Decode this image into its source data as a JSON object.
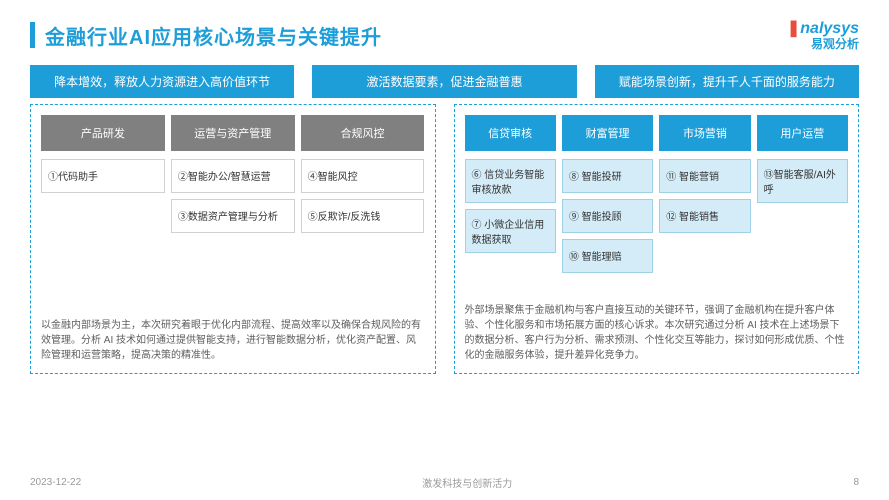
{
  "title": "金融行业AI应用核心场景与关键提升",
  "logo": {
    "en_prefix": "❚",
    "en": "nalysys",
    "cn": "易观分析"
  },
  "colors": {
    "primary": "#1e9ed8",
    "gray_header": "#808080",
    "cell_border_gray": "#d0d0d0",
    "cell_border_blue": "#9ed0e8",
    "cell_fill_blue": "#d4ecf7",
    "text": "#333333",
    "desc": "#5e5e5e",
    "footer": "#9a9a9a"
  },
  "headers": [
    "降本增效，释放人力资源进入高价值环节",
    "激活数据要素，促进金融普惠",
    "赋能场景创新，提升千人千面的服务能力"
  ],
  "left": {
    "subheaders": [
      "产品研发",
      "运营与资产管理",
      "合规风控"
    ],
    "cols": [
      [
        "①代码助手"
      ],
      [
        "②智能办公/智慧运营",
        "③数据资产管理与分析"
      ],
      [
        "④智能风控",
        "⑤反欺诈/反洗钱"
      ]
    ],
    "desc": "以金融内部场景为主，本次研究着眼于优化内部流程、提高效率以及确保合规风险的有效管理。分析 AI 技术如何通过提供智能支持，进行智能数据分析，优化资产配置、风险管理和运营策略，提高决策的精准性。"
  },
  "right": {
    "subheaders": [
      "信贷审核",
      "财富管理",
      "市场营销",
      "用户运营"
    ],
    "cols": [
      [
        "⑥ 信贷业务智能审核放款",
        "⑦ 小微企业信用数据获取"
      ],
      [
        "⑧ 智能投研",
        "⑨ 智能投顾",
        "⑩ 智能理赔"
      ],
      [
        "⑪ 智能营销",
        "⑫ 智能销售"
      ],
      [
        "⑬智能客服/AI外呼"
      ]
    ],
    "desc": "外部场景聚焦于金融机构与客户直接互动的关键环节，强调了金融机构在提升客户体验、个性化服务和市场拓展方面的核心诉求。本次研究通过分析 AI 技术在上述场景下的数据分析、客户行为分析、需求预测、个性化交互等能力，探讨如何形成优质、个性化的金融服务体验，提升差异化竞争力。"
  },
  "footer": {
    "date": "2023-12-22",
    "tagline": "激发科技与创新活力",
    "page": "8"
  }
}
